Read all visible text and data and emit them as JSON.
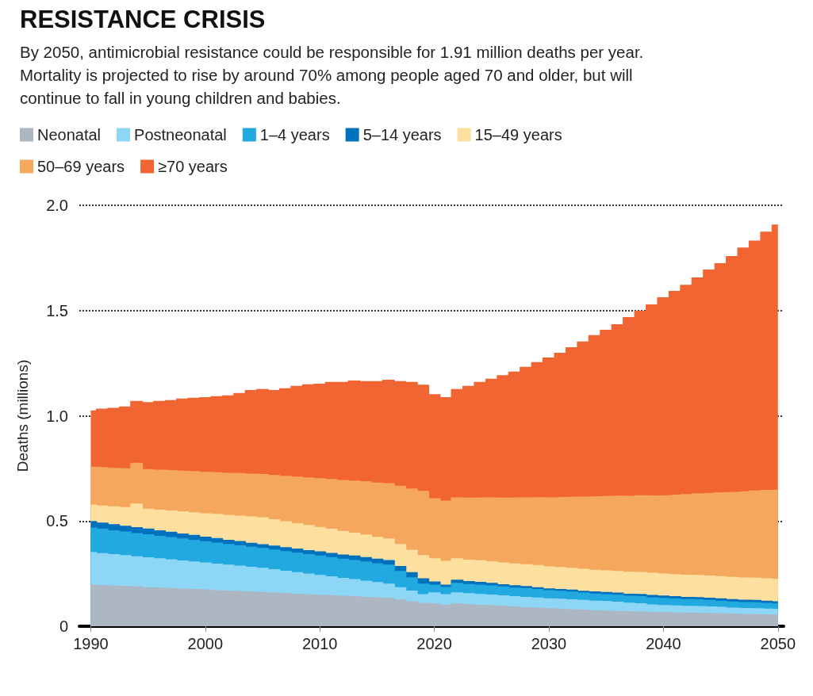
{
  "chart_data": {
    "type": "area",
    "stacked": true,
    "title": "RESISTANCE CRISIS",
    "subtitle": "By 2050, antimicrobial resistance could be responsible for 1.91 million deaths per year. Mortality is projected to rise by around 70% among people aged 70 and older, but will continue to fall in young children and babies.",
    "ylabel": "Deaths (millions)",
    "legend": "top left",
    "grid": "y",
    "x": [
      1990,
      1991,
      1992,
      1993,
      1994,
      1995,
      1996,
      1997,
      1998,
      1999,
      2000,
      2001,
      2002,
      2003,
      2004,
      2005,
      2006,
      2007,
      2008,
      2009,
      2010,
      2011,
      2012,
      2013,
      2014,
      2015,
      2016,
      2017,
      2018,
      2019,
      2020,
      2021,
      2022,
      2023,
      2024,
      2025,
      2026,
      2027,
      2028,
      2029,
      2030,
      2031,
      2032,
      2033,
      2034,
      2035,
      2036,
      2037,
      2038,
      2039,
      2040,
      2041,
      2042,
      2043,
      2044,
      2045,
      2046,
      2047,
      2048,
      2049,
      2050
    ],
    "xlim": [
      1989,
      2050.5
    ],
    "xticks": [
      1990,
      2000,
      2010,
      2020,
      2030,
      2040,
      2050
    ],
    "ylim": [
      0,
      2
    ],
    "yticks": [
      0,
      0.5,
      {
        "value": 1,
        "label": "1.0"
      },
      1.5,
      {
        "value": 2,
        "label": "2.0"
      }
    ],
    "series": [
      {
        "name": "Neonatal",
        "color": "#adb7c3",
        "values": [
          0.195,
          0.193,
          0.19,
          0.188,
          0.186,
          0.183,
          0.181,
          0.179,
          0.176,
          0.174,
          0.172,
          0.169,
          0.167,
          0.165,
          0.162,
          0.16,
          0.157,
          0.155,
          0.152,
          0.15,
          0.147,
          0.145,
          0.142,
          0.14,
          0.137,
          0.135,
          0.132,
          0.124,
          0.116,
          0.108,
          0.105,
          0.1,
          0.105,
          0.102,
          0.099,
          0.097,
          0.094,
          0.091,
          0.088,
          0.086,
          0.083,
          0.081,
          0.078,
          0.076,
          0.073,
          0.071,
          0.07,
          0.068,
          0.067,
          0.065,
          0.064,
          0.063,
          0.062,
          0.061,
          0.06,
          0.059,
          0.057,
          0.056,
          0.055,
          0.054,
          0.053
        ]
      },
      {
        "name": "Postneonatal",
        "color": "#8dd6f5",
        "values": [
          0.155,
          0.152,
          0.15,
          0.147,
          0.144,
          0.142,
          0.139,
          0.136,
          0.134,
          0.131,
          0.128,
          0.126,
          0.123,
          0.12,
          0.118,
          0.115,
          0.111,
          0.106,
          0.102,
          0.098,
          0.094,
          0.089,
          0.085,
          0.081,
          0.077,
          0.072,
          0.068,
          0.059,
          0.051,
          0.042,
          0.053,
          0.05,
          0.053,
          0.052,
          0.052,
          0.051,
          0.05,
          0.049,
          0.049,
          0.048,
          0.047,
          0.047,
          0.047,
          0.046,
          0.046,
          0.046,
          0.044,
          0.041,
          0.039,
          0.036,
          0.034,
          0.033,
          0.032,
          0.032,
          0.031,
          0.03,
          0.029,
          0.028,
          0.028,
          0.027,
          0.026
        ]
      },
      {
        "name": "1–4 years",
        "color": "#22a9e0",
        "values": [
          0.116,
          0.115,
          0.113,
          0.112,
          0.11,
          0.109,
          0.107,
          0.106,
          0.104,
          0.103,
          0.101,
          0.1,
          0.098,
          0.097,
          0.095,
          0.094,
          0.094,
          0.093,
          0.093,
          0.092,
          0.092,
          0.092,
          0.091,
          0.091,
          0.091,
          0.09,
          0.09,
          0.077,
          0.063,
          0.05,
          0.037,
          0.034,
          0.045,
          0.044,
          0.044,
          0.043,
          0.042,
          0.041,
          0.041,
          0.04,
          0.039,
          0.038,
          0.037,
          0.035,
          0.034,
          0.033,
          0.033,
          0.033,
          0.034,
          0.034,
          0.034,
          0.033,
          0.032,
          0.032,
          0.031,
          0.03,
          0.029,
          0.028,
          0.028,
          0.027,
          0.026
        ]
      },
      {
        "name": "5–14 years",
        "color": "#0071bc",
        "values": [
          0.031,
          0.03,
          0.029,
          0.028,
          0.028,
          0.027,
          0.026,
          0.025,
          0.024,
          0.023,
          0.022,
          0.021,
          0.02,
          0.02,
          0.019,
          0.018,
          0.018,
          0.019,
          0.019,
          0.019,
          0.02,
          0.02,
          0.02,
          0.021,
          0.021,
          0.021,
          0.022,
          0.023,
          0.024,
          0.025,
          0.015,
          0.011,
          0.015,
          0.014,
          0.013,
          0.012,
          0.011,
          0.011,
          0.01,
          0.009,
          0.008,
          0.008,
          0.009,
          0.009,
          0.01,
          0.01,
          0.01,
          0.01,
          0.011,
          0.011,
          0.011,
          0.011,
          0.011,
          0.011,
          0.011,
          0.011,
          0.011,
          0.011,
          0.011,
          0.011,
          0.011
        ]
      },
      {
        "name": "15–49 years",
        "color": "#fde0a0",
        "values": [
          0.078,
          0.081,
          0.085,
          0.088,
          0.112,
          0.095,
          0.098,
          0.101,
          0.105,
          0.108,
          0.111,
          0.115,
          0.118,
          0.121,
          0.125,
          0.128,
          0.126,
          0.123,
          0.121,
          0.119,
          0.116,
          0.114,
          0.112,
          0.109,
          0.107,
          0.104,
          0.102,
          0.105,
          0.107,
          0.11,
          0.11,
          0.113,
          0.102,
          0.102,
          0.103,
          0.103,
          0.103,
          0.104,
          0.104,
          0.105,
          0.105,
          0.105,
          0.104,
          0.104,
          0.103,
          0.103,
          0.103,
          0.104,
          0.104,
          0.105,
          0.105,
          0.105,
          0.105,
          0.105,
          0.105,
          0.105,
          0.106,
          0.106,
          0.106,
          0.106,
          0.106
        ]
      },
      {
        "name": "50–69 years",
        "color": "#f6a75e",
        "values": [
          0.18,
          0.182,
          0.183,
          0.185,
          0.194,
          0.188,
          0.19,
          0.192,
          0.193,
          0.195,
          0.197,
          0.198,
          0.2,
          0.202,
          0.203,
          0.205,
          0.21,
          0.216,
          0.221,
          0.226,
          0.232,
          0.237,
          0.242,
          0.247,
          0.253,
          0.258,
          0.263,
          0.277,
          0.291,
          0.305,
          0.285,
          0.286,
          0.289,
          0.294,
          0.298,
          0.303,
          0.308,
          0.313,
          0.317,
          0.322,
          0.327,
          0.332,
          0.338,
          0.343,
          0.349,
          0.354,
          0.358,
          0.361,
          0.365,
          0.368,
          0.372,
          0.377,
          0.383,
          0.388,
          0.393,
          0.399,
          0.404,
          0.409,
          0.414,
          0.42,
          0.425
        ]
      },
      {
        "name": "≥70 years",
        "color": "#f06532",
        "values": [
          0.268,
          0.278,
          0.285,
          0.293,
          0.294,
          0.318,
          0.327,
          0.333,
          0.343,
          0.349,
          0.355,
          0.361,
          0.368,
          0.38,
          0.398,
          0.404,
          0.404,
          0.416,
          0.431,
          0.443,
          0.449,
          0.461,
          0.466,
          0.476,
          0.476,
          0.482,
          0.492,
          0.497,
          0.506,
          0.505,
          0.495,
          0.492,
          0.515,
          0.531,
          0.549,
          0.564,
          0.582,
          0.598,
          0.621,
          0.642,
          0.665,
          0.686,
          0.71,
          0.737,
          0.765,
          0.789,
          0.814,
          0.849,
          0.876,
          0.907,
          0.94,
          0.968,
          0.995,
          1.025,
          1.061,
          1.088,
          1.12,
          1.159,
          1.188,
          1.227,
          1.259
        ]
      }
    ]
  }
}
